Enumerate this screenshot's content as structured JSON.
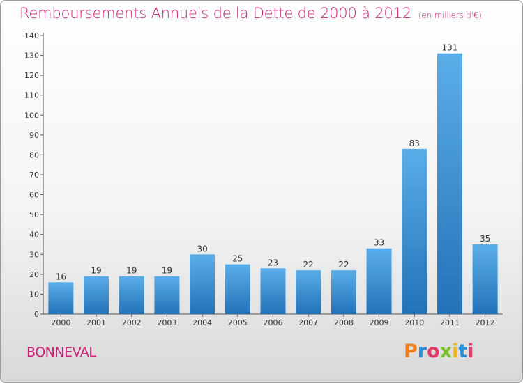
{
  "header": {
    "title": "Remboursements Annuels de la Dette de 2000 à 2012",
    "unit": "(en milliers d'€)"
  },
  "footer": {
    "town": "BONNEVAL",
    "logo": "Proxiti"
  },
  "colors": {
    "accent": "#cc2277",
    "bar_top": "#5aaee8",
    "bar_bottom": "#2272b8"
  },
  "chart_data": {
    "type": "bar",
    "title": "Remboursements Annuels de la Dette de 2000 à 2012",
    "subtitle": "(en milliers d'€)",
    "xlabel": "",
    "ylabel": "",
    "categories": [
      "2000",
      "2001",
      "2002",
      "2003",
      "2004",
      "2005",
      "2006",
      "2007",
      "2008",
      "2009",
      "2010",
      "2011",
      "2012"
    ],
    "values": [
      16,
      19,
      19,
      19,
      30,
      25,
      23,
      22,
      22,
      33,
      83,
      131,
      35
    ],
    "ylim": [
      0,
      140
    ],
    "yticks": [
      0,
      10,
      20,
      30,
      40,
      50,
      60,
      70,
      80,
      90,
      100,
      110,
      120,
      130,
      140
    ],
    "grid": false,
    "legend": "none",
    "data_labels": true
  }
}
